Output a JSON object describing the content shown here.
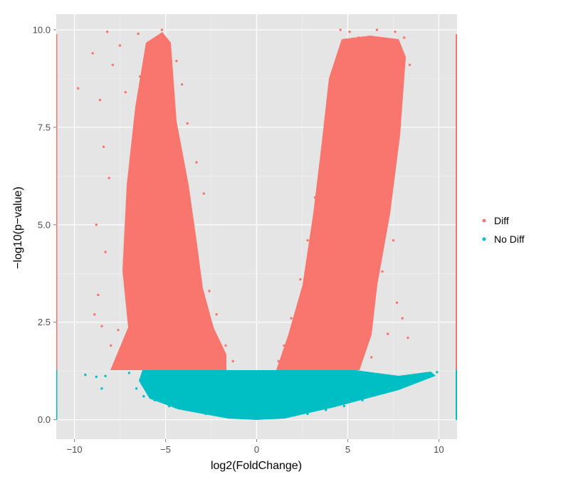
{
  "chart_data": {
    "type": "scatter",
    "title": "",
    "xlabel": "log2(FoldChange)",
    "ylabel": "−log10(p−value)",
    "xlim": [
      -11,
      11
    ],
    "ylim": [
      -0.5,
      10.4
    ],
    "x_ticks": [
      -10,
      -5,
      0,
      5,
      10
    ],
    "x_tick_labels": [
      "−10",
      "−5",
      "0",
      "5",
      "10"
    ],
    "y_ticks": [
      0,
      2.5,
      5,
      7.5,
      10
    ],
    "y_tick_labels": [
      "0.0",
      "2.5",
      "5.0",
      "7.5",
      "10.0"
    ],
    "grid": true,
    "background": "#e5e5e5",
    "significance_threshold": 1.3,
    "legend_position": "right",
    "legend": [
      "Diff",
      "No Diff"
    ],
    "series": [
      {
        "name": "Diff",
        "color": "#f8766d",
        "points": [
          [
            -5.2,
            10.0
          ],
          [
            -6.5,
            9.9
          ],
          [
            -8.2,
            9.95
          ],
          [
            -9.0,
            9.4
          ],
          [
            -7.9,
            9.1
          ],
          [
            -7.5,
            9.6
          ],
          [
            -9.8,
            8.5
          ],
          [
            -8.6,
            8.2
          ],
          [
            -8.4,
            7.0
          ],
          [
            -8.1,
            6.2
          ],
          [
            -8.8,
            5.0
          ],
          [
            -8.3,
            4.3
          ],
          [
            -8.7,
            3.2
          ],
          [
            -8.9,
            2.7
          ],
          [
            -8.5,
            2.4
          ],
          [
            -6.4,
            8.8
          ],
          [
            -7.2,
            8.4
          ],
          [
            -6.1,
            7.3
          ],
          [
            -5.6,
            6.9
          ],
          [
            -4.8,
            9.6
          ],
          [
            -4.4,
            9.2
          ],
          [
            -4.1,
            8.6
          ],
          [
            -3.8,
            7.6
          ],
          [
            -3.3,
            6.6
          ],
          [
            -2.9,
            5.8
          ],
          [
            -4.9,
            8.1
          ],
          [
            -5.9,
            5.6
          ],
          [
            -6.8,
            4.6
          ],
          [
            -7.1,
            3.6
          ],
          [
            -6.6,
            2.2
          ],
          [
            -5.1,
            2.0
          ],
          [
            -4.6,
            3.4
          ],
          [
            -3.9,
            4.2
          ],
          [
            -2.6,
            3.3
          ],
          [
            -2.2,
            2.7
          ],
          [
            -1.7,
            1.9
          ],
          [
            -1.3,
            1.5
          ],
          [
            -5.8,
            1.7
          ],
          [
            -7.6,
            2.3
          ],
          [
            -8.0,
            1.9
          ],
          [
            4.6,
            10.0
          ],
          [
            5.1,
            9.95
          ],
          [
            5.6,
            9.8
          ],
          [
            6.6,
            10.0
          ],
          [
            7.6,
            9.95
          ],
          [
            8.1,
            9.8
          ],
          [
            8.4,
            9.1
          ],
          [
            7.8,
            8.5
          ],
          [
            7.3,
            8.0
          ],
          [
            6.9,
            7.2
          ],
          [
            4.2,
            9.0
          ],
          [
            4.4,
            8.2
          ],
          [
            3.9,
            7.4
          ],
          [
            3.6,
            6.6
          ],
          [
            3.2,
            5.7
          ],
          [
            5.5,
            8.7
          ],
          [
            6.1,
            7.7
          ],
          [
            6.6,
            6.6
          ],
          [
            7.1,
            5.6
          ],
          [
            7.5,
            4.6
          ],
          [
            6.9,
            3.8
          ],
          [
            7.7,
            3.0
          ],
          [
            8.0,
            2.6
          ],
          [
            8.3,
            2.1
          ],
          [
            7.2,
            2.2
          ],
          [
            2.8,
            4.6
          ],
          [
            2.4,
            3.6
          ],
          [
            1.9,
            2.6
          ],
          [
            1.5,
            1.9
          ],
          [
            1.2,
            1.5
          ],
          [
            4.9,
            5.4
          ],
          [
            5.3,
            4.2
          ],
          [
            4.4,
            3.1
          ],
          [
            5.8,
            2.4
          ],
          [
            6.3,
            1.6
          ]
        ]
      },
      {
        "name": "No Diff",
        "color": "#00bfc4",
        "points": [
          [
            -9.4,
            1.15
          ],
          [
            -8.8,
            1.1
          ],
          [
            -8.3,
            1.12
          ],
          [
            -8.5,
            0.8
          ],
          [
            -7.0,
            1.2
          ],
          [
            -6.6,
            0.8
          ],
          [
            -6.2,
            0.6
          ],
          [
            -5.6,
            0.5
          ],
          [
            -4.8,
            0.35
          ],
          [
            -3.8,
            0.25
          ],
          [
            -2.8,
            0.15
          ],
          [
            -1.8,
            0.1
          ],
          [
            -5.4,
            1.1
          ],
          [
            -4.4,
            1.0
          ],
          [
            -3.6,
            0.9
          ],
          [
            -2.6,
            0.8
          ],
          [
            -2.0,
            0.7
          ],
          [
            -1.4,
            0.5
          ],
          [
            -0.8,
            0.3
          ],
          [
            -0.4,
            0.2
          ],
          [
            0.0,
            0.2
          ],
          [
            0.4,
            0.2
          ],
          [
            0.8,
            0.35
          ],
          [
            1.4,
            0.5
          ],
          [
            2.0,
            0.7
          ],
          [
            2.6,
            0.8
          ],
          [
            3.4,
            0.9
          ],
          [
            4.2,
            1.0
          ],
          [
            5.2,
            1.1
          ],
          [
            1.8,
            0.1
          ],
          [
            2.8,
            0.15
          ],
          [
            3.8,
            0.25
          ],
          [
            4.8,
            0.35
          ],
          [
            5.8,
            0.5
          ],
          [
            6.6,
            0.65
          ],
          [
            7.4,
            0.8
          ],
          [
            8.2,
            0.95
          ],
          [
            8.8,
            1.05
          ],
          [
            9.4,
            1.18
          ],
          [
            9.9,
            1.22
          ],
          [
            6.2,
            1.15
          ],
          [
            7.0,
            1.05
          ]
        ]
      }
    ]
  }
}
